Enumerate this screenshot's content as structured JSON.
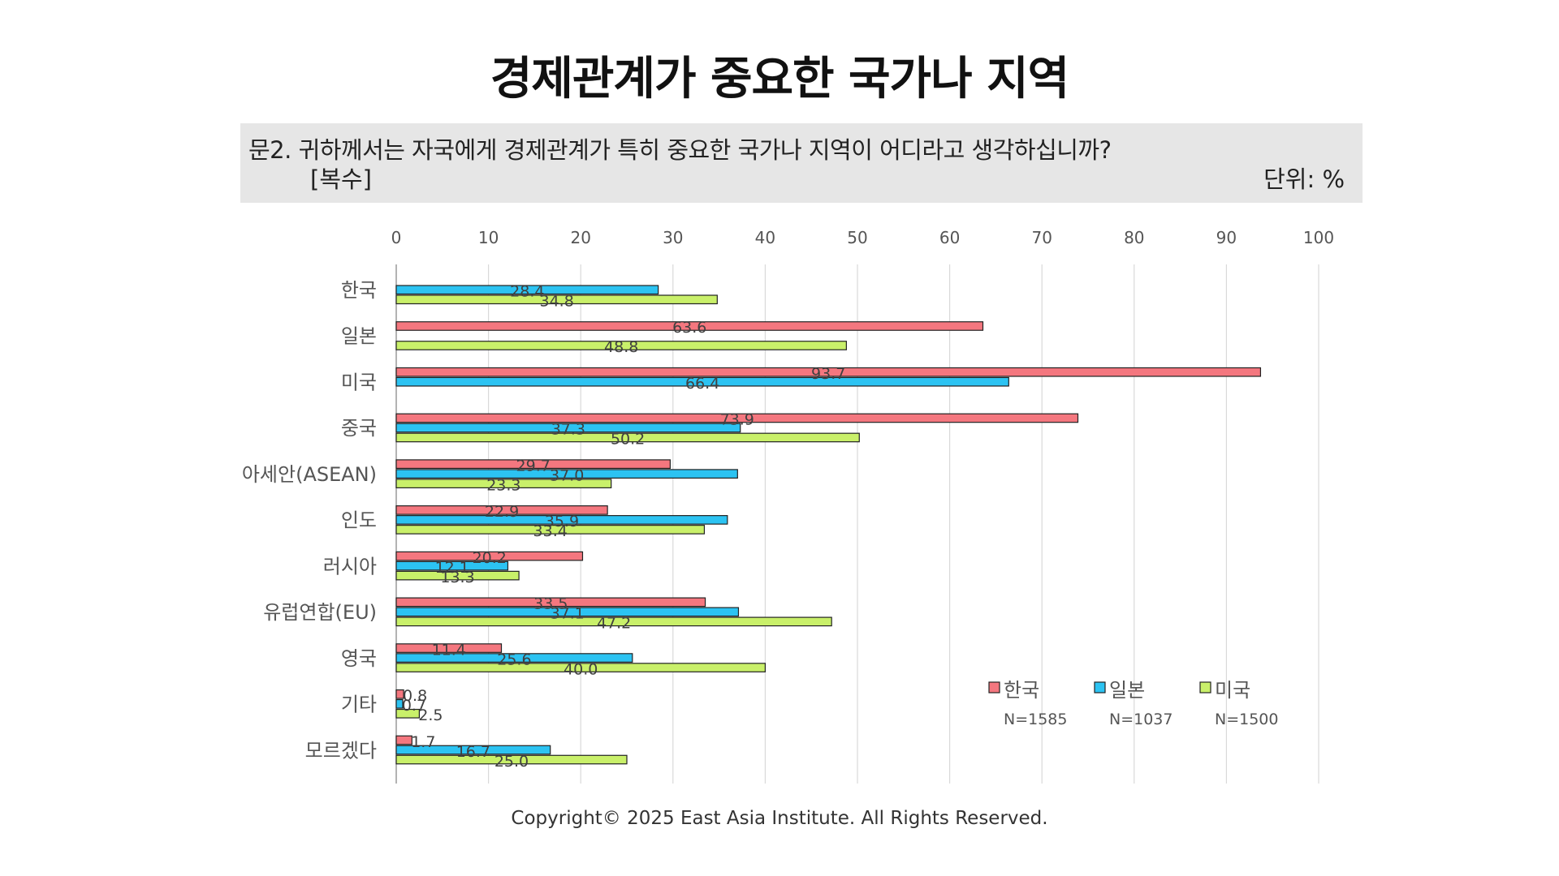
{
  "title": "경제관계가 중요한 국가나 지역",
  "question": {
    "text": "문2. 귀하께서는 자국에게 경제관계가 특히 중요한 국가나 지역이 어디라고 생각하십니까?",
    "note": "[복수]",
    "unit": "단위: %"
  },
  "copyright": "Copyright© 2025 East Asia Institute. All Rights Reserved.",
  "chart_data": {
    "type": "bar",
    "orientation": "horizontal",
    "categories": [
      "한국",
      "일본",
      "미국",
      "중국",
      "아세안(ASEAN)",
      "인도",
      "러시아",
      "유럽연합(EU)",
      "영국",
      "기타",
      "모르겠다"
    ],
    "series": [
      {
        "name": "한국",
        "n_label": "N=1585",
        "color": "#f4777f",
        "values": [
          null,
          63.6,
          93.7,
          73.9,
          29.7,
          22.9,
          20.2,
          33.5,
          11.4,
          0.8,
          1.7
        ]
      },
      {
        "name": "일본",
        "n_label": "N=1037",
        "color": "#2cc3f2",
        "values": [
          28.4,
          null,
          66.4,
          37.3,
          37.0,
          35.9,
          12.1,
          37.1,
          25.6,
          0.7,
          16.7
        ]
      },
      {
        "name": "미국",
        "n_label": "N=1500",
        "color": "#c9f06a",
        "values": [
          34.8,
          48.8,
          null,
          50.2,
          23.3,
          33.4,
          13.3,
          47.2,
          40.0,
          2.5,
          25.0
        ]
      }
    ],
    "value_labels": [
      [
        null,
        "63.6",
        "93.7",
        "73.9",
        "29.7",
        "22.9",
        "20.2",
        "33.5",
        "11.4",
        "0.8",
        "1.7"
      ],
      [
        "28.4",
        null,
        "66.4",
        "37.3",
        "37.0",
        "35.9",
        "12.1",
        "37.1",
        "25.6",
        "0.7",
        "16.7"
      ],
      [
        "34.8",
        "48.8",
        null,
        "50.2",
        "23.3",
        "33.4",
        "13.3",
        "47.2",
        "40.0",
        "2.5",
        "25.0"
      ]
    ],
    "xlim": [
      0,
      100
    ],
    "xticks": [
      "0",
      "10",
      "20",
      "30",
      "40",
      "50",
      "60",
      "70",
      "80",
      "90",
      "100"
    ],
    "xaxis_position": "top",
    "grid": true,
    "legend_position": "bottom-right"
  }
}
